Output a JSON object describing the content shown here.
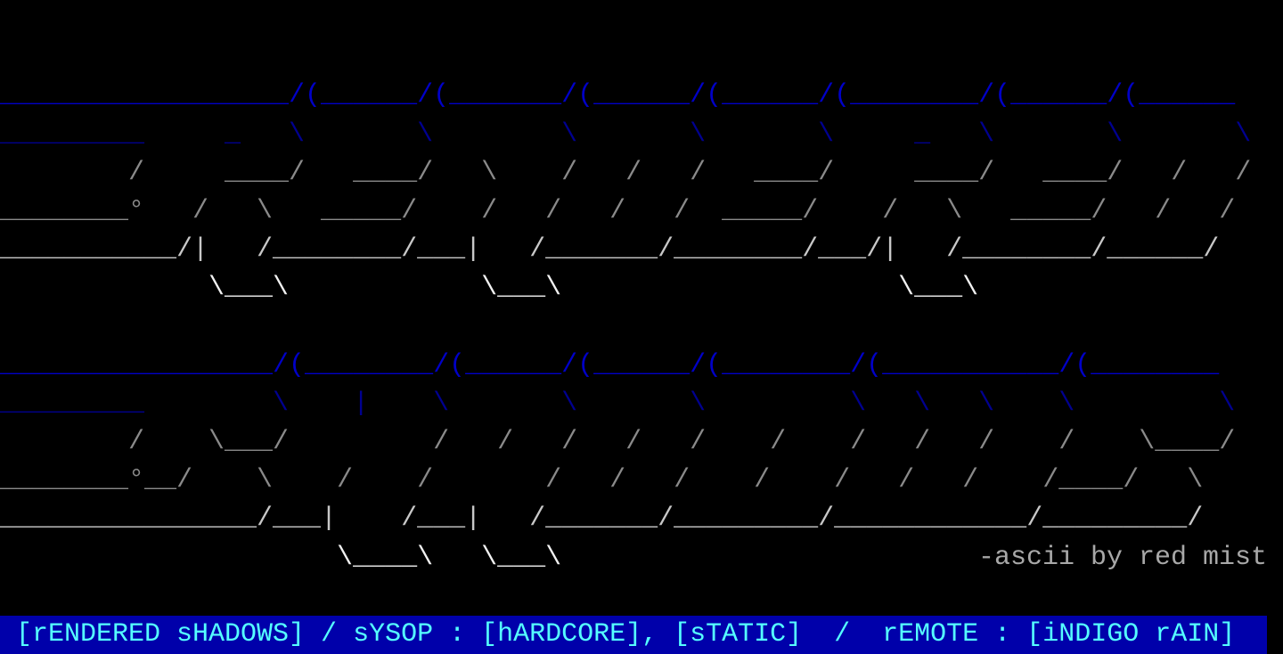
{
  "colors": {
    "background": "#000000",
    "status_bar": "#0000aa",
    "status_text": "#55ffff",
    "logo_blue": "#0000c8",
    "logo_gray": "#8a8a8a",
    "logo_white": "#f2f2f2"
  },
  "art": {
    "rows": [
      {
        "text": "__________________/(______/(_______/(______/(______/(________/(______/(______"
      },
      {
        "text": "_________     _   \\       \\        \\       \\       \\     _   \\       \\       \\"
      },
      {
        "text": "        /     ____/   ____/   \\    /   /   /   ____/     ____/   ____/   /   /"
      },
      {
        "text": "________°   /   \\   _____/    /   /   /   /  _____/    /   \\   _____/   /   /"
      },
      {
        "text": "___________/|   /________/___|   /_______/________/___/|   /________/______/"
      },
      {
        "text": "             \\___\\            \\___\\                     \\___\\"
      },
      {
        "text": "_________________/(________/(______/(______/(________/(___________/(________"
      },
      {
        "text": "_________        \\    |    \\       \\       \\         \\   \\   \\    \\         \\"
      },
      {
        "text": "        /    \\___/         /   /   /   /   /    /    /   /   /    /    \\____/"
      },
      {
        "text": "________°__/    \\    /    /       /   /   /    /    /   /   /    /____/   \\"
      },
      {
        "text": "________________/___|    /___|   /_______/_________/____________/_________/"
      },
      {
        "text": "                     \\____\\   \\___\\"
      }
    ],
    "credit": "-ascii by red mist"
  },
  "status_bar": {
    "text": " [rENDERED sHADOWS] / sYSOP : [hARDCORE], [sTATIC]  /  rEMOTE : [iNDIGO rAIN]"
  }
}
